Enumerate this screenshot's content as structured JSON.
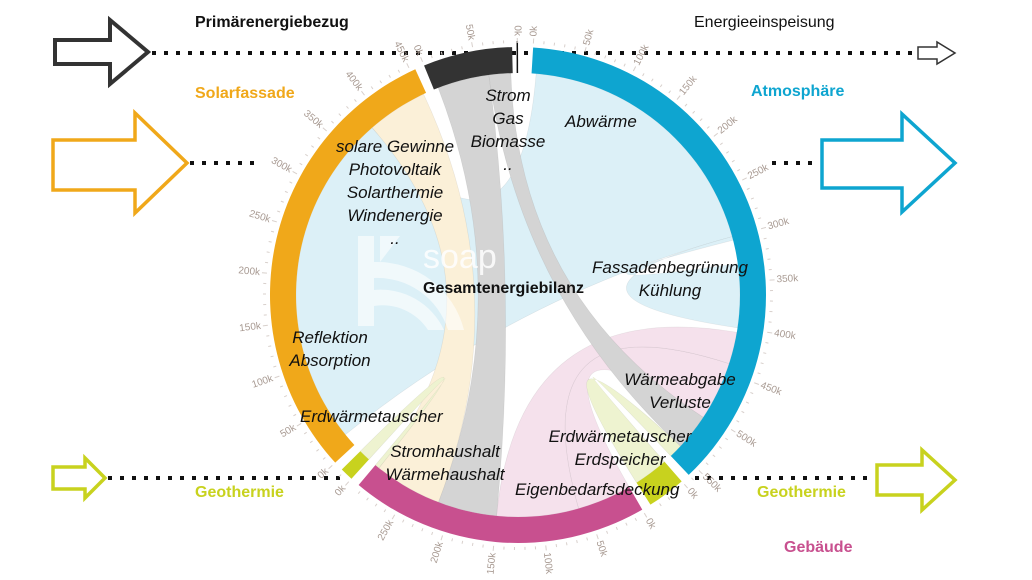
{
  "headings": {
    "primary": "Primärenergiebezug",
    "feed_in": "Energieeinspeisung",
    "solar": "Solarfassade",
    "atmosphere": "Atmosphäre",
    "geo_left": "Geothermie",
    "geo_right": "Geothermie",
    "building": "Gebäude",
    "center": "Gesamtenergiebilanz",
    "logo": "soap"
  },
  "annotations": {
    "primary": [
      "Strom",
      "Gas",
      "Biomasse",
      ".."
    ],
    "solar": [
      "solare Gewinne",
      "Photovoltaik",
      "Solarthermie",
      "Windenergie",
      ".."
    ],
    "reflection": [
      "Reflektion",
      "Absorption"
    ],
    "abwaerme": "Abwärme",
    "green": [
      "Fassadenbegrünung",
      "Kühlung"
    ],
    "losses": [
      "Wärmeabgabe",
      "Verluste"
    ],
    "geo_left": "Erdwärmetauscher",
    "geo_right": [
      "Erdwärmetauscher",
      "Erdspeicher"
    ],
    "household": [
      "Stromhaushalt",
      "Wärmehaushalt"
    ],
    "self": "Eigenbedarfsdeckung"
  },
  "colors": {
    "atmosphere": "#0ea5d0",
    "geothermal": "#c8d21e",
    "building": "#c8508f",
    "solar": "#f0a81a",
    "primary": "#333333",
    "feed_in": "#333333"
  },
  "chart_data": {
    "type": "chord",
    "tick_unit": "k",
    "groups": [
      {
        "id": "atmosphere",
        "total": 560
      },
      {
        "id": "geo_right",
        "total": 38
      },
      {
        "id": "building",
        "total": 295
      },
      {
        "id": "geo_left",
        "total": 13
      },
      {
        "id": "solar",
        "total": 455
      },
      {
        "id": "primary",
        "total": 88
      },
      {
        "id": "feed_in",
        "total": 0
      }
    ],
    "flows": [
      {
        "from": "solar",
        "from_range": [
          15,
          385
        ],
        "to": "atmosphere",
        "to_range": [
          5,
          300
        ],
        "color": "#dcf0f7"
      },
      {
        "from": "atmosphere",
        "from_range": [
          300,
          304
        ],
        "to": "atmosphere",
        "to_range": [
          330,
          400
        ],
        "color": "#dcf0f7"
      },
      {
        "from": "building",
        "from_range": [
          0,
          60
        ],
        "to": "atmosphere",
        "to_range": [
          440,
          505
        ],
        "color": "#f5e1ec"
      },
      {
        "from": "building",
        "from_range": [
          60,
          150
        ],
        "to": "atmosphere",
        "to_range": [
          405,
          440
        ],
        "color": "#f5e1ec"
      },
      {
        "from": "solar",
        "from_range": [
          385,
          452
        ],
        "to": "building",
        "to_range": [
          215,
          290
        ],
        "color": "#fbf0d8"
      },
      {
        "from": "primary",
        "from_range": [
          5,
          62
        ],
        "to": "building",
        "to_range": [
          150,
          215
        ],
        "color": "#d4d4d4"
      },
      {
        "from": "primary",
        "from_range": [
          62,
          86
        ],
        "to": "atmosphere",
        "to_range": [
          505,
          545
        ],
        "color": "#d4d4d4"
      },
      {
        "from": "geo_left",
        "from_range": [
          0,
          13
        ],
        "to": "building",
        "to_range": [
          290,
          295
        ],
        "color": "#eef3d0"
      },
      {
        "from": "geo_right",
        "from_range": [
          0,
          38
        ],
        "to": "atmosphere",
        "to_range": [
          545,
          560
        ],
        "color": "#eef3d0"
      }
    ]
  }
}
